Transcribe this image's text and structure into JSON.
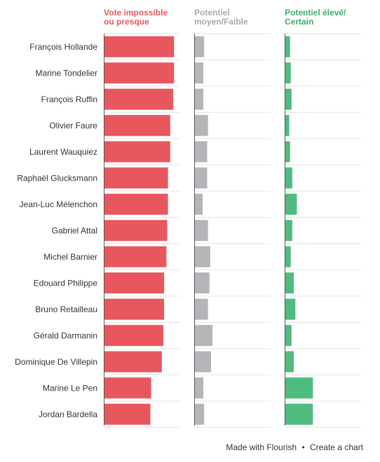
{
  "chart_data": {
    "type": "bar",
    "title": "",
    "xlabel": "",
    "ylabel": "",
    "grid": true,
    "xlim": [
      0,
      100
    ],
    "categories": [
      "François Hollande",
      "Marine Tondelier",
      "François Ruffin",
      "Olivier Faure",
      "Laurent Wauquiez",
      "Raphaël Glucksmann",
      "Jean-Luc Mélenchon",
      "Gabriel Attal",
      "Michel Barnier",
      "Edouard Philippe",
      "Bruno Retailleau",
      "Gérald Darmanin",
      "Dominique De Villepin",
      "Marine Le Pen",
      "Jordan Bardella"
    ],
    "series": [
      {
        "name": "Vote impossible ou presque",
        "color": "#e8575e",
        "values": [
          92,
          92,
          91,
          87,
          87,
          84,
          84,
          83,
          82,
          79,
          79,
          78,
          76,
          62,
          61
        ]
      },
      {
        "name": "Potentiel moyen/Faible",
        "color": "#b4b5b8",
        "values": [
          13,
          12,
          12,
          18,
          17,
          17,
          11,
          18,
          21,
          20,
          18,
          24,
          22,
          12,
          13
        ]
      },
      {
        "name": "Potentiel élevé/ Certain",
        "color": "#4ebb7f",
        "values": [
          7,
          8,
          9,
          6,
          7,
          10,
          16,
          10,
          8,
          12,
          14,
          9,
          12,
          37,
          37
        ]
      }
    ]
  },
  "headers": {
    "col1_line1": "Vote impossible",
    "col1_line2": "ou presque",
    "col2_line1": "Potentiel",
    "col2_line2": "moyen/Faible",
    "col3_line1": "Potentiel élevé/",
    "col3_line2": "Certain"
  },
  "footer": {
    "made_with": "Made with Flourish",
    "separator": "•",
    "create": "Create a chart"
  }
}
